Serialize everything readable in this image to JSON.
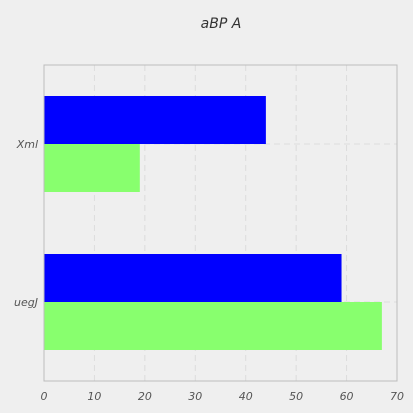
{
  "chart_data": {
    "type": "bar",
    "orientation": "horizontal",
    "title": "aBP A",
    "categories": [
      "Xml",
      "uegJ"
    ],
    "series": [
      {
        "color": "#0000ff",
        "values": [
          44,
          59
        ]
      },
      {
        "color": "#88ff6e",
        "values": [
          19,
          67
        ]
      }
    ],
    "xlim": [
      0,
      70
    ],
    "xticks": [
      0,
      10,
      20,
      30,
      40,
      50,
      60,
      70
    ],
    "grid": true,
    "xlabel": "",
    "ylabel": ""
  },
  "colors": {
    "background": "#efefef",
    "plot_background": "#efefef",
    "grid": "#dcdcdc",
    "axes": "#bcbcbc",
    "text": "#555555"
  }
}
